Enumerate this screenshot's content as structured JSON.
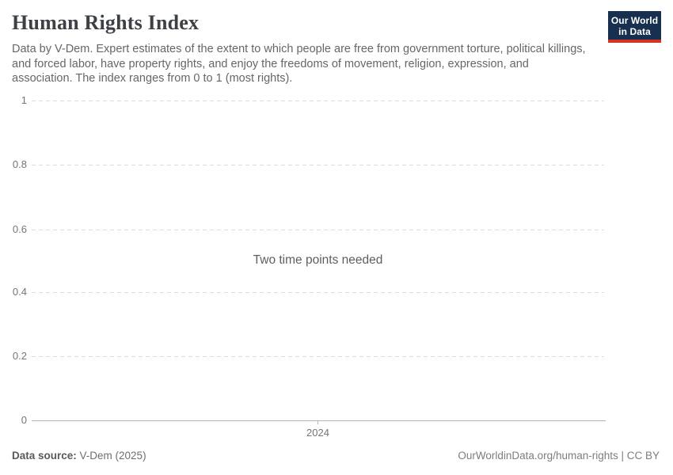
{
  "header": {
    "title": "Human Rights Index",
    "subtitle": "Data by V-Dem. Expert estimates of the extent to which people are free from government torture, political killings, and forced labor, have property rights, and enjoy the freedoms of movement, religion, expression, and association. The index ranges from 0 to 1 (most rights)."
  },
  "logo": {
    "line1": "Our World",
    "line2": "in Data",
    "background_color": "#18304f",
    "accent_color": "#d63222"
  },
  "chart_data": {
    "type": "line",
    "title": "Human Rights Index",
    "empty_message": "Two time points needed",
    "series": [],
    "x": [],
    "xlabel": "",
    "ylabel": "",
    "ylim": [
      0,
      1
    ],
    "yticks": [
      "1",
      "0.8",
      "0.6",
      "0.4",
      "0.2",
      "0"
    ],
    "xticks": [
      "2024"
    ],
    "grid": "horizontal-dashed",
    "legend": "none",
    "gridline_color": "#dcdcdc",
    "axis_color": "#b3b3b3"
  },
  "footer": {
    "data_source_label": "Data source:",
    "data_source_value": " V-Dem (2025)",
    "attribution": "OurWorldinData.org/human-rights | CC BY"
  }
}
